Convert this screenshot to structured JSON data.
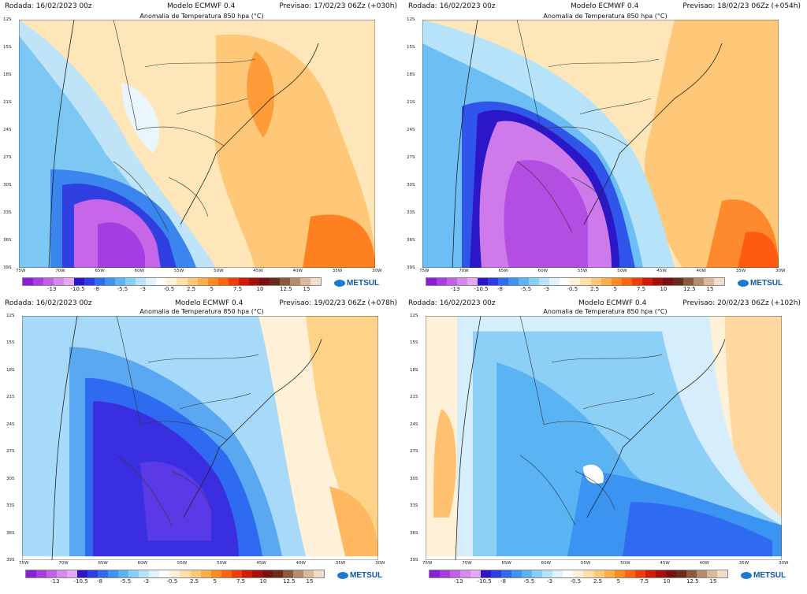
{
  "panels": [
    {
      "rodada": "Rodada: 16/02/2023 00z",
      "modelo": "",
      "title": "Anomalia de Temperatura 850 hpa (°C)",
      "previsao": "Previsao: 17/02/23 06Zz (+030h)"
    },
    {
      "rodada": "Rodada: 16/02/2023 00z",
      "modelo": "",
      "title": "Anomalia de Temperatura 850 hpa (°C)",
      "previsao": "Previsao: 18/02/23 06Zz (+054h)"
    },
    {
      "rodada": "Rodada: 16/02/2023 00z",
      "modelo": "Modelo ECMWF 0.4",
      "title": "Anomalia de Temperatura 850 hpa (°C)",
      "previsao": "Previsao: 19/02/23 06Zz (+078h)"
    },
    {
      "rodada": "Rodada: 16/02/2023 00z",
      "modelo": "Modelo ECMWF 0.4",
      "title": "Anomalia de Temperatura 850 hpa (°C)",
      "previsao": "Previsao: 20/02/23 06Zz (+102h)"
    }
  ],
  "top_title_prefix": "Modelo ECMWF 0.4",
  "lat_labels": [
    "12S",
    "15S",
    "18S",
    "21S",
    "24S",
    "27S",
    "30S",
    "33S",
    "36S",
    "39S"
  ],
  "lon_labels": [
    "75W",
    "70W",
    "65W",
    "60W",
    "55W",
    "50W",
    "45W",
    "40W",
    "35W",
    "30W"
  ],
  "colorbar": {
    "labels": [
      "-13",
      "-10.5",
      "-8",
      "-5.5",
      "-3",
      "-0.5",
      "2.5",
      "5",
      "7.5",
      "10",
      "12.5",
      "15"
    ],
    "colors": [
      "#8a1fd6",
      "#a93ee0",
      "#c062e6",
      "#d588ee",
      "#e4a9f3",
      "#2b16c8",
      "#2d3de8",
      "#2f6bf0",
      "#3b93f2",
      "#5ab4f4",
      "#86cff7",
      "#b6e3fa",
      "#e0f3fd",
      "#ffffff",
      "#fff1d8",
      "#ffe0a8",
      "#ffc978",
      "#ffad4a",
      "#ff8a1e",
      "#ff6410",
      "#f23c0a",
      "#d21a06",
      "#a80f08",
      "#7a1010",
      "#6b2a1a",
      "#8a5a3a",
      "#b58c6a",
      "#d9b99a",
      "#eeddc9"
    ]
  },
  "logo": "METSUL"
}
